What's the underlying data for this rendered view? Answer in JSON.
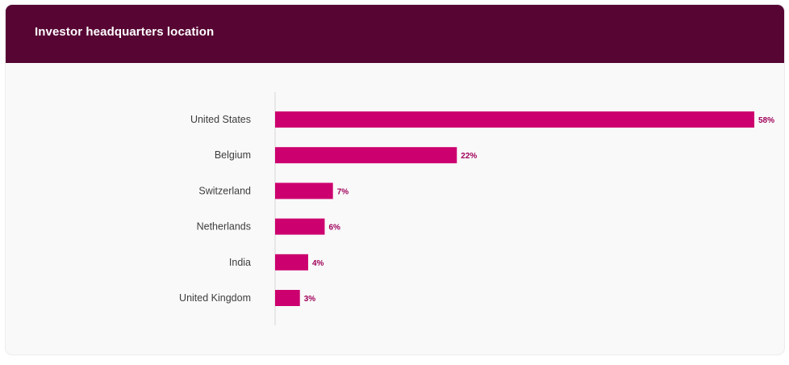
{
  "header": {
    "title": "Investor headquarters location"
  },
  "colors": {
    "header_bg": "#570634",
    "bar": "#cc006e",
    "value_label": "#a0005a",
    "axis": "#d8d8d8"
  },
  "chart_data": {
    "type": "bar",
    "orientation": "horizontal",
    "title": "Investor headquarters location",
    "categories": [
      "United States",
      "Belgium",
      "Switzerland",
      "Netherlands",
      "India",
      "United Kingdom"
    ],
    "values": [
      58,
      22,
      7,
      6,
      4,
      3
    ],
    "value_labels": [
      "58%",
      "22%",
      "7%",
      "6%",
      "4%",
      "3%"
    ],
    "unit": "%",
    "xlim": [
      0,
      58
    ],
    "grid": false,
    "legend": "none"
  }
}
